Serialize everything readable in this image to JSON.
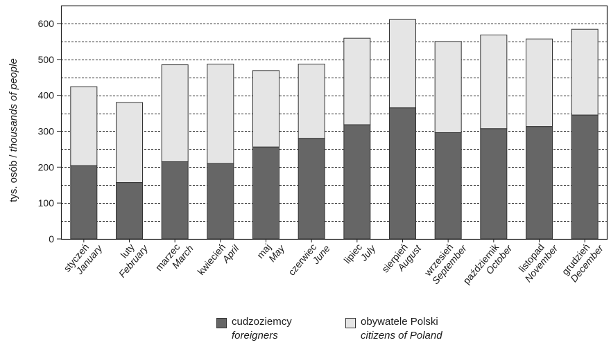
{
  "chart_data": {
    "type": "bar",
    "stacked": true,
    "ylabel_pl": "tys. osób / ",
    "ylabel_en": "thousands of people",
    "ylim": [
      0,
      650
    ],
    "yticks": [
      "0",
      "100",
      "200",
      "300",
      "400",
      "500",
      "600"
    ],
    "grid": "horizontal dashed",
    "categories_pl": [
      "styczeń",
      "luty",
      "marzec",
      "kwiecień",
      "maj",
      "czerwiec",
      "lipiec",
      "sierpień",
      "wrzesień",
      "październik",
      "listopad",
      "grudzień"
    ],
    "categories_en": [
      "January",
      "February",
      "March",
      "April",
      "May",
      "June",
      "July",
      "August",
      "September",
      "October",
      "November",
      "December"
    ],
    "totals": [
      424,
      380,
      485,
      487,
      469,
      487,
      559,
      611,
      550,
      568,
      557,
      584
    ],
    "series": [
      {
        "name": "cudzoziemcy",
        "name_en": "foreigners",
        "color": "#666666",
        "values": [
          204,
          157,
          215,
          210,
          256,
          280,
          318,
          365,
          296,
          307,
          313,
          345
        ]
      },
      {
        "name": "obywatele Polski",
        "name_en": "citizens of Poland",
        "color": "#e5e5e5",
        "values": [
          220,
          223,
          270,
          277,
          213,
          207,
          241,
          246,
          254,
          261,
          244,
          239
        ]
      }
    ],
    "legend_position": "bottom"
  }
}
